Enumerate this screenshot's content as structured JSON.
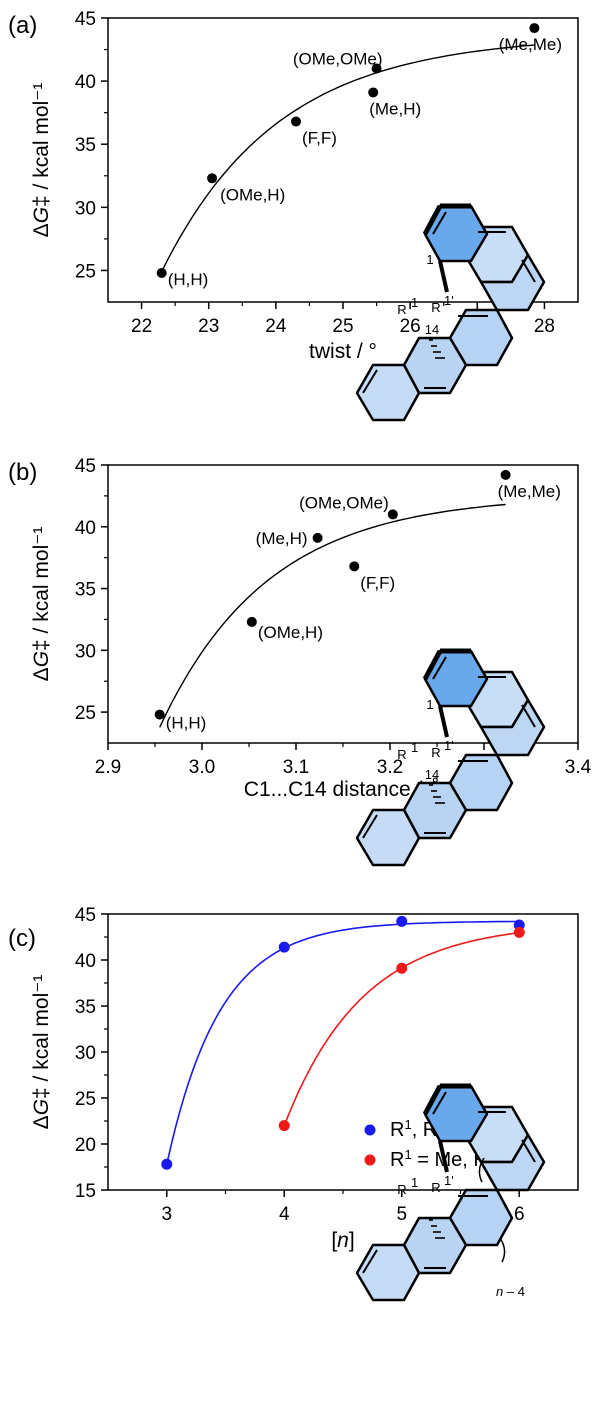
{
  "panels": [
    "(a)",
    "(b)",
    "(c)"
  ],
  "ylabel": "ΔG‡ / kcal mol⁻¹",
  "chart_data": [
    {
      "type": "scatter",
      "xlabel": "twist / °",
      "ylabel": "ΔG‡ / kcal mol⁻¹",
      "xlim": [
        21.5,
        28.5
      ],
      "ylim": [
        22.5,
        45
      ],
      "xticks": [
        "22",
        "23",
        "24",
        "25",
        "26",
        "27",
        "28"
      ],
      "yticks": [
        "25",
        "30",
        "35",
        "40",
        "45"
      ],
      "fit": "saturating curve",
      "points": [
        {
          "label": "(H,H)",
          "x": 22.3,
          "y": 24.8
        },
        {
          "label": "(OMe,H)",
          "x": 23.05,
          "y": 32.3
        },
        {
          "label": "(F,F)",
          "x": 24.3,
          "y": 36.8
        },
        {
          "label": "(Me,H)",
          "x": 25.45,
          "y": 39.1
        },
        {
          "label": "(OMe,OMe)",
          "x": 25.5,
          "y": 41.0
        },
        {
          "label": "(Me,Me)",
          "x": 27.85,
          "y": 44.2
        }
      ],
      "molecule_labels": {
        "c1": "1",
        "c14": "14",
        "r1": "R",
        "r1_sup": "1",
        "r1p": "R",
        "r1p_sup": "1'"
      }
    },
    {
      "type": "scatter",
      "xlabel": "C1...C14 distance / Å",
      "ylabel": "ΔG‡ / kcal mol⁻¹",
      "xlim": [
        2.9,
        3.4
      ],
      "ylim": [
        22.5,
        45
      ],
      "xticks": [
        "2.9",
        "3.0",
        "3.1",
        "3.2",
        "3.3",
        "3.4"
      ],
      "yticks": [
        "25",
        "30",
        "35",
        "40",
        "45"
      ],
      "fit": "saturating curve",
      "points": [
        {
          "label": "(H,H)",
          "x": 2.955,
          "y": 24.8
        },
        {
          "label": "(OMe,H)",
          "x": 3.053,
          "y": 32.3
        },
        {
          "label": "(Me,H)",
          "x": 3.123,
          "y": 39.1
        },
        {
          "label": "(F,F)",
          "x": 3.162,
          "y": 36.8
        },
        {
          "label": "(OMe,OMe)",
          "x": 3.203,
          "y": 41.0
        },
        {
          "label": "(Me,Me)",
          "x": 3.323,
          "y": 44.2
        }
      ],
      "molecule_labels": {
        "c1": "1",
        "c14": "14",
        "r1": "R",
        "r1_sup": "1",
        "r1p": "R",
        "r1p_sup": "1'"
      }
    },
    {
      "type": "scatter",
      "xlabel": "[n]",
      "ylabel": "ΔG‡ / kcal mol⁻¹",
      "xlim": [
        2.5,
        6.5
      ],
      "ylim": [
        15,
        45
      ],
      "xticks": [
        "3",
        "4",
        "5",
        "6"
      ],
      "yticks": [
        "15",
        "20",
        "25",
        "30",
        "35",
        "40",
        "45"
      ],
      "series": [
        {
          "name": "R¹, R¹' = Me",
          "color": "#1a1aee",
          "points": [
            {
              "x": 3,
              "y": 17.8
            },
            {
              "x": 4,
              "y": 41.4
            },
            {
              "x": 5,
              "y": 44.2
            },
            {
              "x": 6,
              "y": 43.8
            }
          ]
        },
        {
          "name": "R¹ = Me, R¹' = H",
          "color": "#ee1a1a",
          "points": [
            {
              "x": 4,
              "y": 22.0
            },
            {
              "x": 5,
              "y": 39.1
            },
            {
              "x": 6,
              "y": 43.0
            }
          ]
        }
      ],
      "legend": {
        "position": "bottom-right",
        "entries": [
          {
            "a": "R",
            "b": "1",
            "c": ", R",
            "d": "1'",
            "e": " = Me"
          },
          {
            "a": "R",
            "b": "1",
            "c": " = Me, R",
            "d": "1'",
            "e": " = H"
          }
        ]
      },
      "molecule_labels": {
        "r1": "R",
        "r1_sup": "1",
        "r1p": "R",
        "r1p_sup": "1'",
        "repeat": "n – 4"
      }
    }
  ]
}
